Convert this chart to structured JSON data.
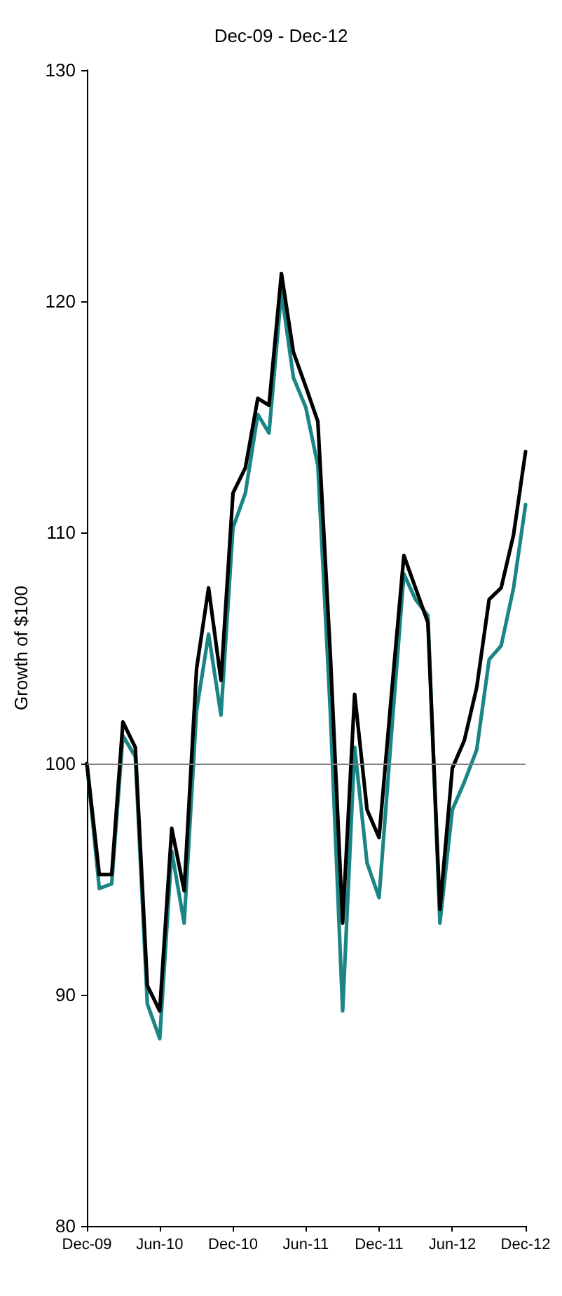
{
  "chart_data": {
    "type": "line",
    "title": "Dec-09 - Dec-12",
    "ylabel": "Growth of $100",
    "x": [
      "2009-12",
      "2010-01",
      "2010-02",
      "2010-03",
      "2010-04",
      "2010-05",
      "2010-06",
      "2010-07",
      "2010-08",
      "2010-09",
      "2010-10",
      "2010-11",
      "2010-12",
      "2011-01",
      "2011-02",
      "2011-03",
      "2011-04",
      "2011-05",
      "2011-06",
      "2011-07",
      "2011-08",
      "2011-09",
      "2011-10",
      "2011-11",
      "2011-12",
      "2012-01",
      "2012-02",
      "2012-03",
      "2012-04",
      "2012-05",
      "2012-06",
      "2012-07",
      "2012-08",
      "2012-09",
      "2012-10",
      "2012-11",
      "2012-12"
    ],
    "series": [
      {
        "color": "#1b8585",
        "values": [
          100,
          94.6,
          94.8,
          101.2,
          100.3,
          89.6,
          88.1,
          96.2,
          93.1,
          102.3,
          105.6,
          102.1,
          110.2,
          111.7,
          115.1,
          114.3,
          120.4,
          116.7,
          115.4,
          112.9,
          102.3,
          89.3,
          100.7,
          95.7,
          94.2,
          101.3,
          108.2,
          107.1,
          106.4,
          93.1,
          98,
          99.2,
          100.6,
          104.5,
          105.1,
          107.6,
          111.2
        ]
      },
      {
        "color": "#000000",
        "values": [
          100,
          95.2,
          95.2,
          101.8,
          100.7,
          90.4,
          89.3,
          97.2,
          94.5,
          104.1,
          107.6,
          103.6,
          111.7,
          112.8,
          115.8,
          115.5,
          121.2,
          117.8,
          116.3,
          114.8,
          104.8,
          93.1,
          103,
          98,
          96.8,
          103,
          109,
          107.6,
          106.1,
          93.7,
          99.8,
          101,
          103.3,
          107.1,
          107.6,
          109.9,
          113.5
        ]
      }
    ],
    "xlim": [
      "2009-12",
      "2012-12"
    ],
    "xticks": [
      {
        "value": "2009-12",
        "label": "Dec-09"
      },
      {
        "value": "2010-06",
        "label": "Jun-10"
      },
      {
        "value": "2010-12",
        "label": "Dec-10"
      },
      {
        "value": "2011-06",
        "label": "Jun-11"
      },
      {
        "value": "2011-12",
        "label": "Dec-11"
      },
      {
        "value": "2012-06",
        "label": "Jun-12"
      },
      {
        "value": "2012-12",
        "label": "Dec-12"
      }
    ],
    "ylim": [
      80,
      130
    ],
    "yticks": [
      80,
      90,
      100,
      110,
      120,
      130
    ],
    "ref_lines": [
      {
        "axis": "y",
        "value": 100,
        "color": "#808080"
      }
    ],
    "grid": false,
    "marker": "none",
    "line_style": "solid"
  }
}
